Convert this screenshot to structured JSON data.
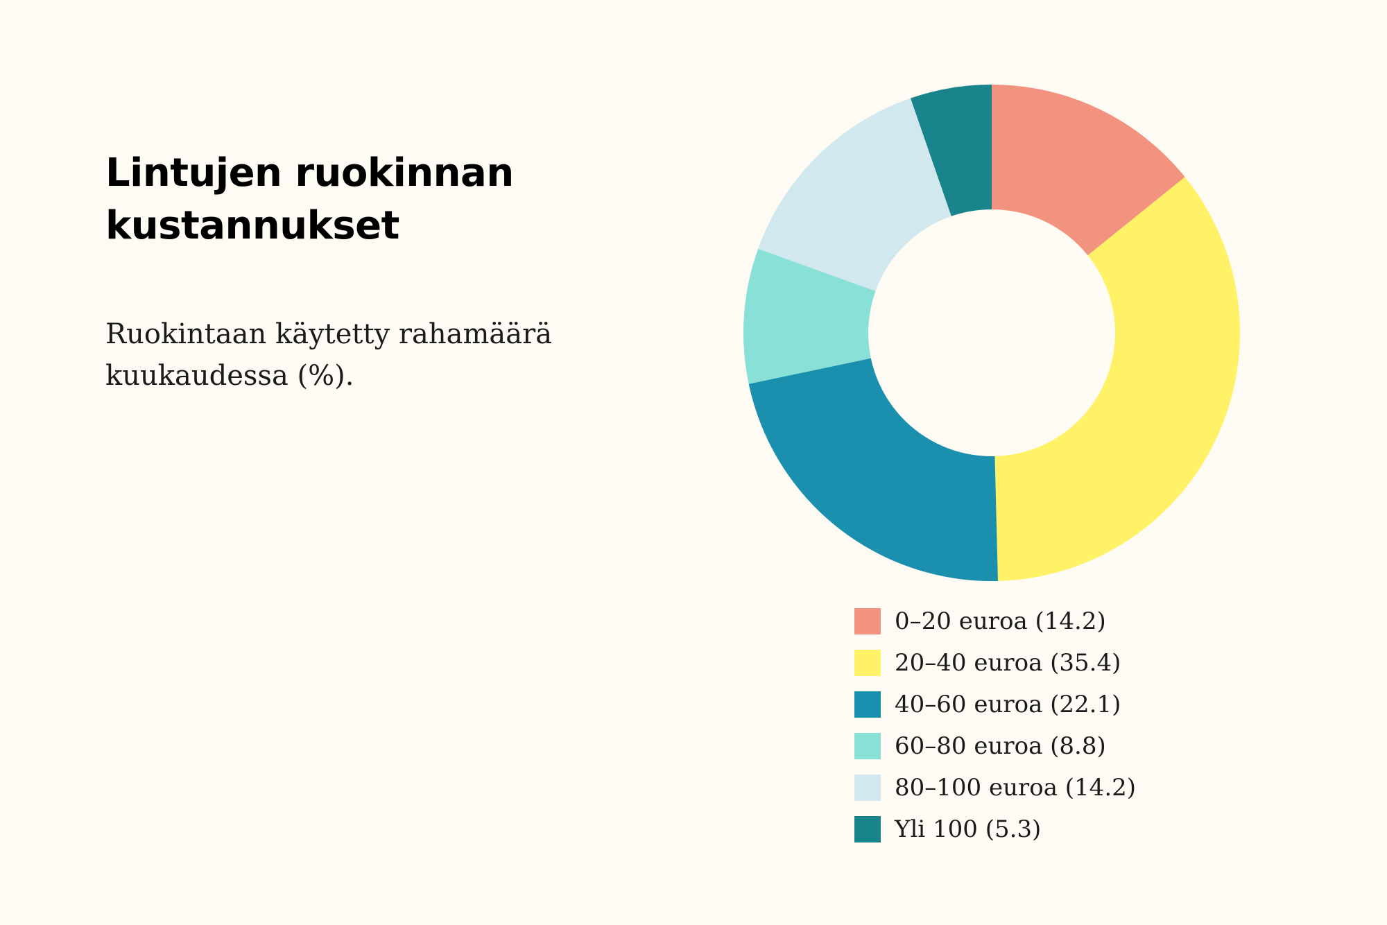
{
  "title": "Lintujen ruokinnan kustannukset",
  "subtitle": "Ruokintaan käytetty rahamäärä kuukaudessa (%).",
  "chart_data": {
    "type": "pie",
    "variant": "donut",
    "start": "top",
    "direction": "clockwise",
    "legend_position": "bottom",
    "categories": [
      "0–20 euroa",
      "20–40 euroa",
      "40–60 euroa",
      "60–80 euroa",
      "80–100 euroa",
      "Yli 100"
    ],
    "values": [
      14.2,
      35.4,
      22.1,
      8.8,
      14.2,
      5.3
    ],
    "legend_labels": [
      "0–20 euroa (14.2)",
      "20–40 euroa (35.4)",
      "40–60 euroa (22.1)",
      "60–80 euroa (8.8)",
      "80–100 euroa (14.2)",
      "Yli 100 (5.3)"
    ],
    "colors": [
      "#f2937f",
      "#fff266",
      "#1a8fae",
      "#88e0d7",
      "#d1e8ee",
      "#1a848c"
    ]
  }
}
